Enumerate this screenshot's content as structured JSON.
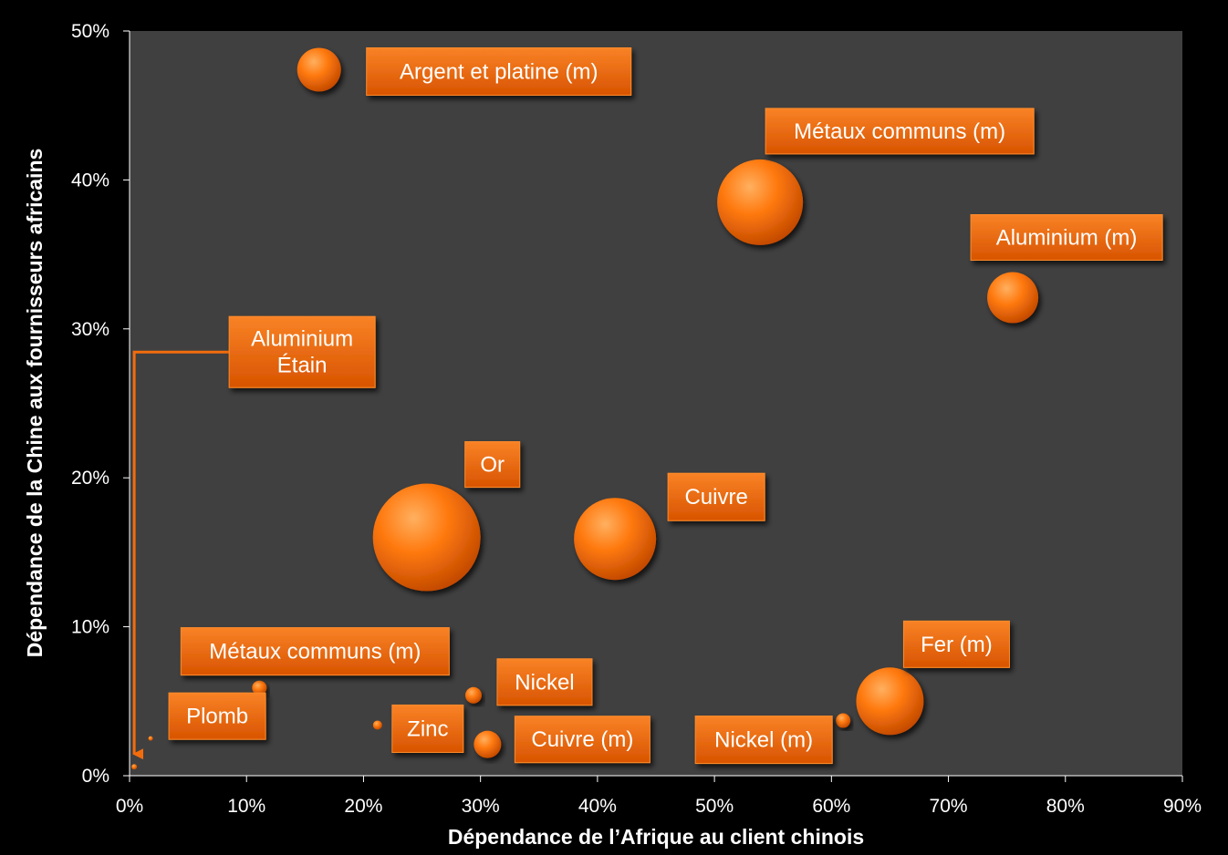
{
  "chart_data": {
    "type": "scatter",
    "subtype": "bubble",
    "xlabel": "Dépendance de l’Afrique au client chinois",
    "ylabel": "Dépendance de la Chine aux fournisseurs africains",
    "xlim": [
      0,
      0.9
    ],
    "ylim": [
      0,
      0.5
    ],
    "x_ticks": [
      "0%",
      "10%",
      "20%",
      "30%",
      "40%",
      "50%",
      "60%",
      "70%",
      "80%",
      "90%"
    ],
    "y_ticks": [
      "0%",
      "10%",
      "20%",
      "30%",
      "40%",
      "50%"
    ],
    "grid": false,
    "colors": {
      "background": "#000000",
      "plot_area": "#404040",
      "bubble": "#ff7a10",
      "callout": "#f36c0c",
      "text": "#ffffff"
    },
    "points": [
      {
        "label": "Argent et platine (m)",
        "x": 0.162,
        "y": 0.474,
        "size": 24
      },
      {
        "label": "Métaux communs (m)",
        "x": 0.539,
        "y": 0.385,
        "size": 47
      },
      {
        "label": "Aluminium (m)",
        "x": 0.755,
        "y": 0.321,
        "size": 28
      },
      {
        "label": "Or",
        "x": 0.254,
        "y": 0.16,
        "size": 59
      },
      {
        "label": "Cuivre",
        "x": 0.415,
        "y": 0.159,
        "size": 45
      },
      {
        "label": "Fer (m)",
        "x": 0.65,
        "y": 0.05,
        "size": 37
      },
      {
        "label": "Nickel (m)",
        "x": 0.61,
        "y": 0.037,
        "size": 8
      },
      {
        "label": "Métaux communs (m)",
        "x": 0.111,
        "y": 0.059,
        "size": 8
      },
      {
        "label": "Nickel",
        "x": 0.294,
        "y": 0.054,
        "size": 9
      },
      {
        "label": "Zinc",
        "x": 0.212,
        "y": 0.034,
        "size": 5
      },
      {
        "label": "Cuivre (m)",
        "x": 0.306,
        "y": 0.021,
        "size": 15
      },
      {
        "label": "Plomb",
        "x": 0.018,
        "y": 0.025,
        "size": 1
      },
      {
        "label": "Aluminium Étain",
        "lines": [
          "Aluminium",
          "Étain"
        ],
        "x": 0.004,
        "y": 0.006,
        "size": 3
      }
    ]
  }
}
